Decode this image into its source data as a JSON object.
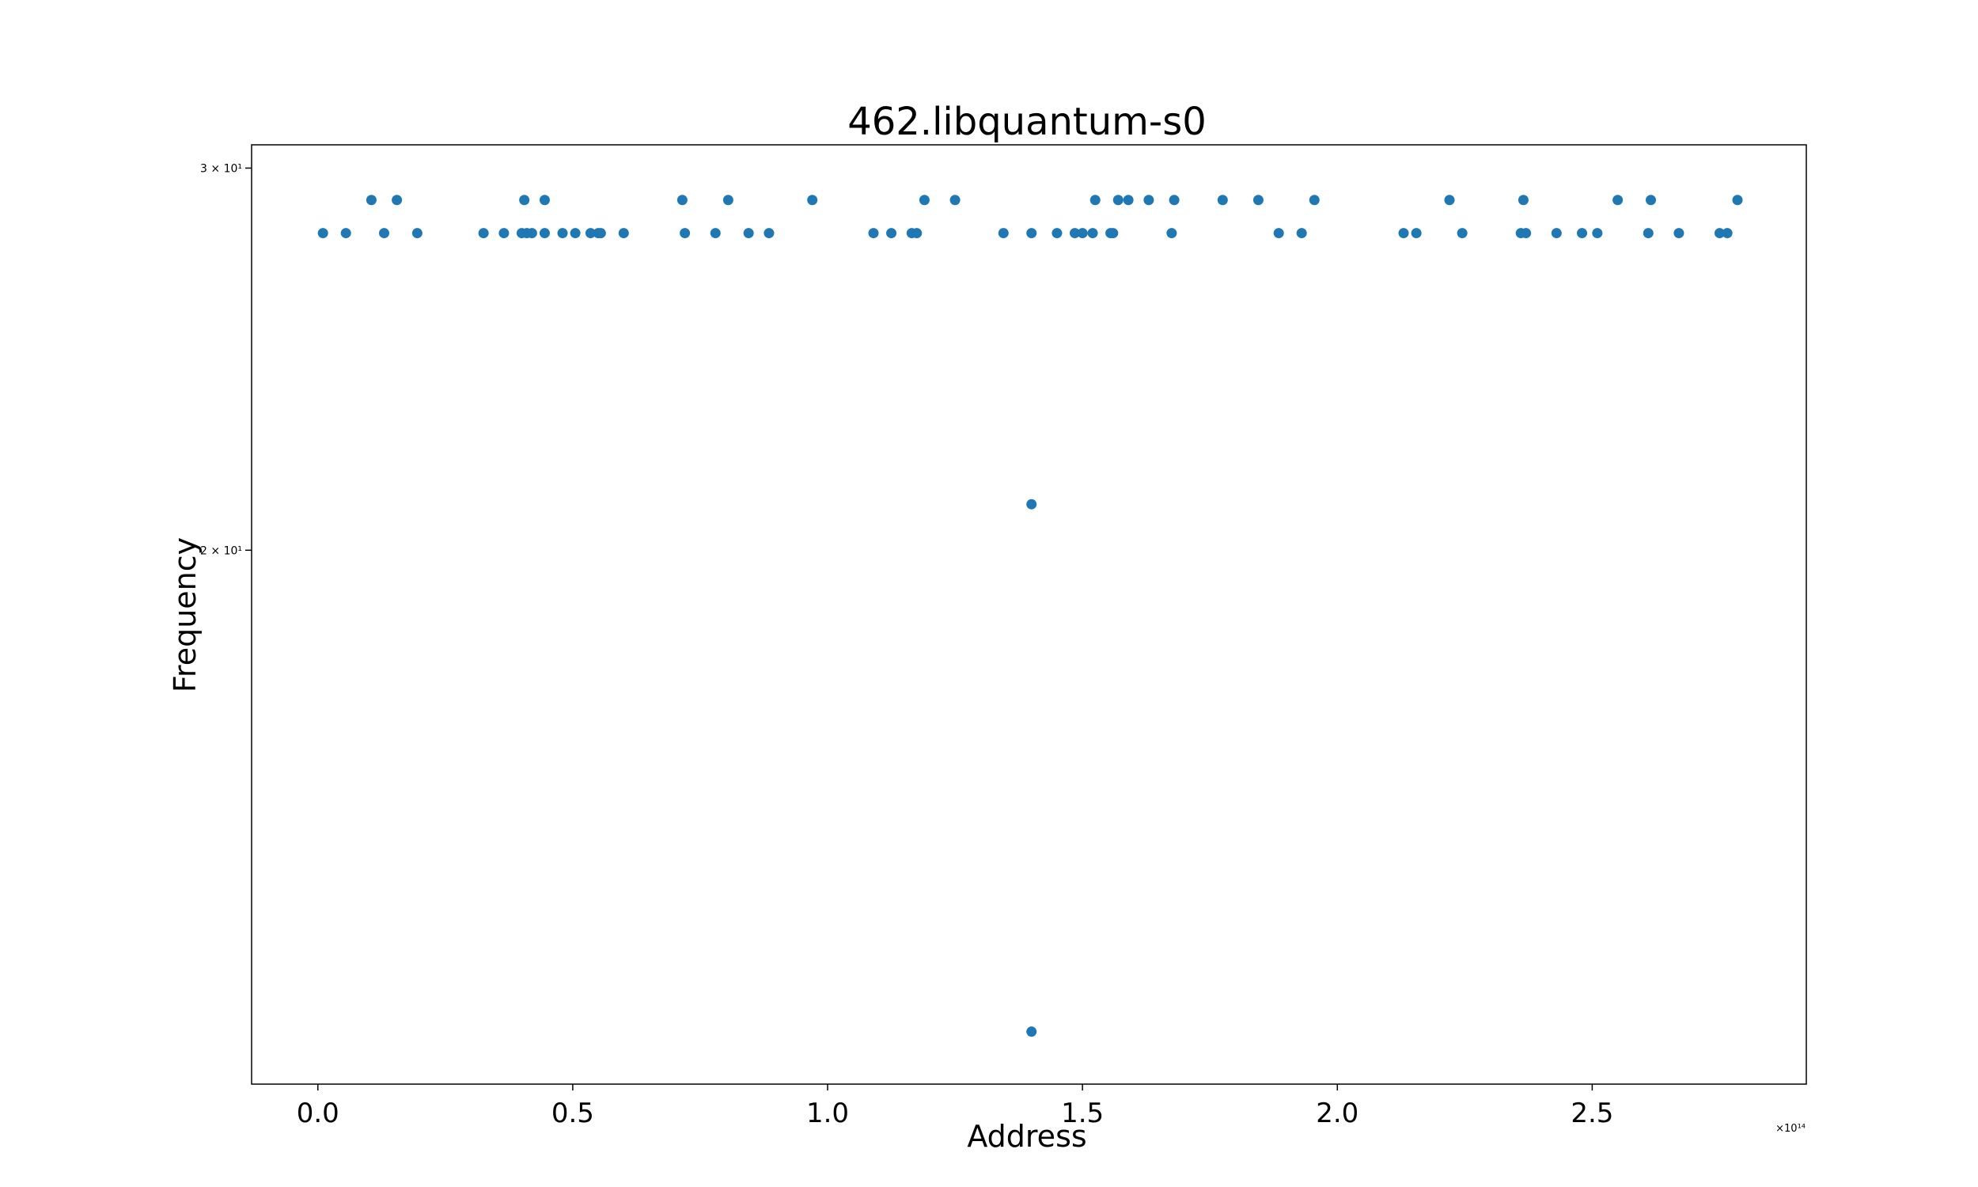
{
  "chart_data": {
    "type": "scatter",
    "title": "462.libquantum-s0",
    "xlabel": "Address",
    "ylabel": "Frequency",
    "x_offset_label": "×10¹⁴",
    "xlim": [
      -0.13,
      2.92
    ],
    "ylim": [
      11.35,
      30.75
    ],
    "yscale": "log",
    "grid": false,
    "marker_color": "#1f77b4",
    "xticks": [
      {
        "value": 0.0,
        "label": "0.0"
      },
      {
        "value": 0.5,
        "label": "0.5"
      },
      {
        "value": 1.0,
        "label": "1.0"
      },
      {
        "value": 1.5,
        "label": "1.5"
      },
      {
        "value": 2.0,
        "label": "2.0"
      },
      {
        "value": 2.5,
        "label": "2.5"
      }
    ],
    "yticks": [
      {
        "value": 20,
        "label": "2 × 10¹"
      },
      {
        "value": 30,
        "label": "3 × 10¹"
      }
    ],
    "series": [
      {
        "points": [
          [
            0.01,
            28
          ],
          [
            0.055,
            28
          ],
          [
            0.105,
            29
          ],
          [
            0.13,
            28
          ],
          [
            0.155,
            29
          ],
          [
            0.195,
            28
          ],
          [
            0.325,
            28
          ],
          [
            0.365,
            28
          ],
          [
            0.4,
            28
          ],
          [
            0.405,
            29
          ],
          [
            0.41,
            28
          ],
          [
            0.42,
            28
          ],
          [
            0.445,
            28
          ],
          [
            0.445,
            29
          ],
          [
            0.48,
            28
          ],
          [
            0.505,
            28
          ],
          [
            0.535,
            28
          ],
          [
            0.55,
            28
          ],
          [
            0.555,
            28
          ],
          [
            0.6,
            28
          ],
          [
            0.715,
            29
          ],
          [
            0.72,
            28
          ],
          [
            0.78,
            28
          ],
          [
            0.805,
            29
          ],
          [
            0.845,
            28
          ],
          [
            0.885,
            28
          ],
          [
            0.97,
            29
          ],
          [
            1.09,
            28
          ],
          [
            1.125,
            28
          ],
          [
            1.165,
            28
          ],
          [
            1.175,
            28
          ],
          [
            1.19,
            29
          ],
          [
            1.25,
            29
          ],
          [
            1.345,
            28
          ],
          [
            1.4,
            28
          ],
          [
            1.4,
            21
          ],
          [
            1.4,
            12
          ],
          [
            1.45,
            28
          ],
          [
            1.485,
            28
          ],
          [
            1.5,
            28
          ],
          [
            1.52,
            28
          ],
          [
            1.525,
            29
          ],
          [
            1.555,
            28
          ],
          [
            1.56,
            28
          ],
          [
            1.57,
            29
          ],
          [
            1.59,
            29
          ],
          [
            1.63,
            29
          ],
          [
            1.675,
            28
          ],
          [
            1.68,
            29
          ],
          [
            1.775,
            29
          ],
          [
            1.845,
            29
          ],
          [
            1.885,
            28
          ],
          [
            1.93,
            28
          ],
          [
            1.955,
            29
          ],
          [
            2.13,
            28
          ],
          [
            2.155,
            28
          ],
          [
            2.22,
            29
          ],
          [
            2.245,
            28
          ],
          [
            2.36,
            28
          ],
          [
            2.365,
            29
          ],
          [
            2.37,
            28
          ],
          [
            2.43,
            28
          ],
          [
            2.48,
            28
          ],
          [
            2.51,
            28
          ],
          [
            2.55,
            29
          ],
          [
            2.61,
            28
          ],
          [
            2.615,
            29
          ],
          [
            2.67,
            28
          ],
          [
            2.75,
            28
          ],
          [
            2.765,
            28
          ],
          [
            2.785,
            29
          ]
        ]
      }
    ]
  }
}
